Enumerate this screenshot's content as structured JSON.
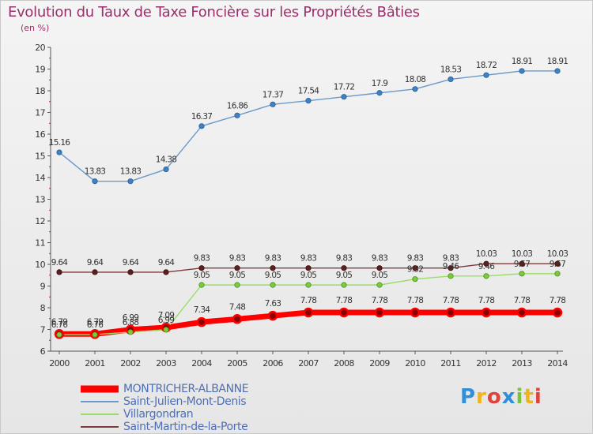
{
  "header": {
    "title": "Evolution du Taux de Taxe Foncière sur les Propriétés Bâties",
    "unit": "(en %)"
  },
  "brand": {
    "letters": [
      "P",
      "r",
      "o",
      "x",
      "i",
      "t",
      "i"
    ]
  },
  "chart_data": {
    "type": "line",
    "title": "Evolution du Taux de Taxe Foncière sur les Propriétés Bâties",
    "ylabel": "(en %)",
    "xlabel": "",
    "x": [
      2000,
      2001,
      2002,
      2003,
      2004,
      2005,
      2006,
      2007,
      2008,
      2009,
      2010,
      2011,
      2012,
      2013,
      2014
    ],
    "y_ticks": [
      6,
      7,
      8,
      9,
      10,
      11,
      12,
      13,
      14,
      15,
      16,
      17,
      18,
      19,
      20
    ],
    "ylim": [
      6,
      20
    ],
    "grid": false,
    "legend_position": "bottom-left",
    "series": [
      {
        "name": "MONTRICHER-ALBANNE",
        "color": "#ff0000",
        "values": [
          6.79,
          6.79,
          6.99,
          7.09,
          7.34,
          7.48,
          7.63,
          7.78,
          7.78,
          7.78,
          7.78,
          7.78,
          7.78,
          7.78,
          7.78
        ],
        "labels": [
          "6.79",
          "6.79",
          "6.99",
          "7.09",
          "7.34",
          "7.48",
          "7.63",
          "7.78",
          "7.78",
          "7.78",
          "7.78",
          "7.78",
          "7.78",
          "7.78",
          "7.78"
        ]
      },
      {
        "name": "Saint-Julien-Mont-Denis",
        "color": "#6a9ac9",
        "values": [
          15.16,
          13.83,
          13.83,
          14.38,
          16.37,
          16.86,
          17.37,
          17.54,
          17.72,
          17.9,
          18.08,
          18.53,
          18.72,
          18.91,
          18.91
        ],
        "labels": [
          "15.16",
          "13.83",
          "13.83",
          "14.38",
          "16.37",
          "16.86",
          "17.37",
          "17.54",
          "17.72",
          "17.9",
          "18.08",
          "18.53",
          "18.72",
          "18.91",
          "18.91"
        ]
      },
      {
        "name": "Villargondran",
        "color": "#99dd66",
        "values": [
          6.76,
          6.76,
          6.88,
          6.99,
          9.05,
          9.05,
          9.05,
          9.05,
          9.05,
          9.05,
          9.32,
          9.46,
          9.46,
          9.57,
          9.57
        ],
        "labels": [
          "6.76",
          "6.76",
          "6.88",
          "6.99",
          "9.05",
          "9.05",
          "9.05",
          "9.05",
          "9.05",
          "9.05",
          "9.32",
          "9.46",
          "9.46",
          "9.57",
          "9.57"
        ]
      },
      {
        "name": "Saint-Martin-de-la-Porte",
        "color": "#7d3a3a",
        "values": [
          9.64,
          9.64,
          9.64,
          9.64,
          9.83,
          9.83,
          9.83,
          9.83,
          9.83,
          9.83,
          9.83,
          9.83,
          10.03,
          10.03,
          10.03
        ],
        "labels": [
          "9.64",
          "9.64",
          "9.64",
          "9.64",
          "9.83",
          "9.83",
          "9.83",
          "9.83",
          "9.83",
          "9.83",
          "9.83",
          "9.83",
          "10.03",
          "10.03",
          "10.03"
        ]
      }
    ]
  }
}
